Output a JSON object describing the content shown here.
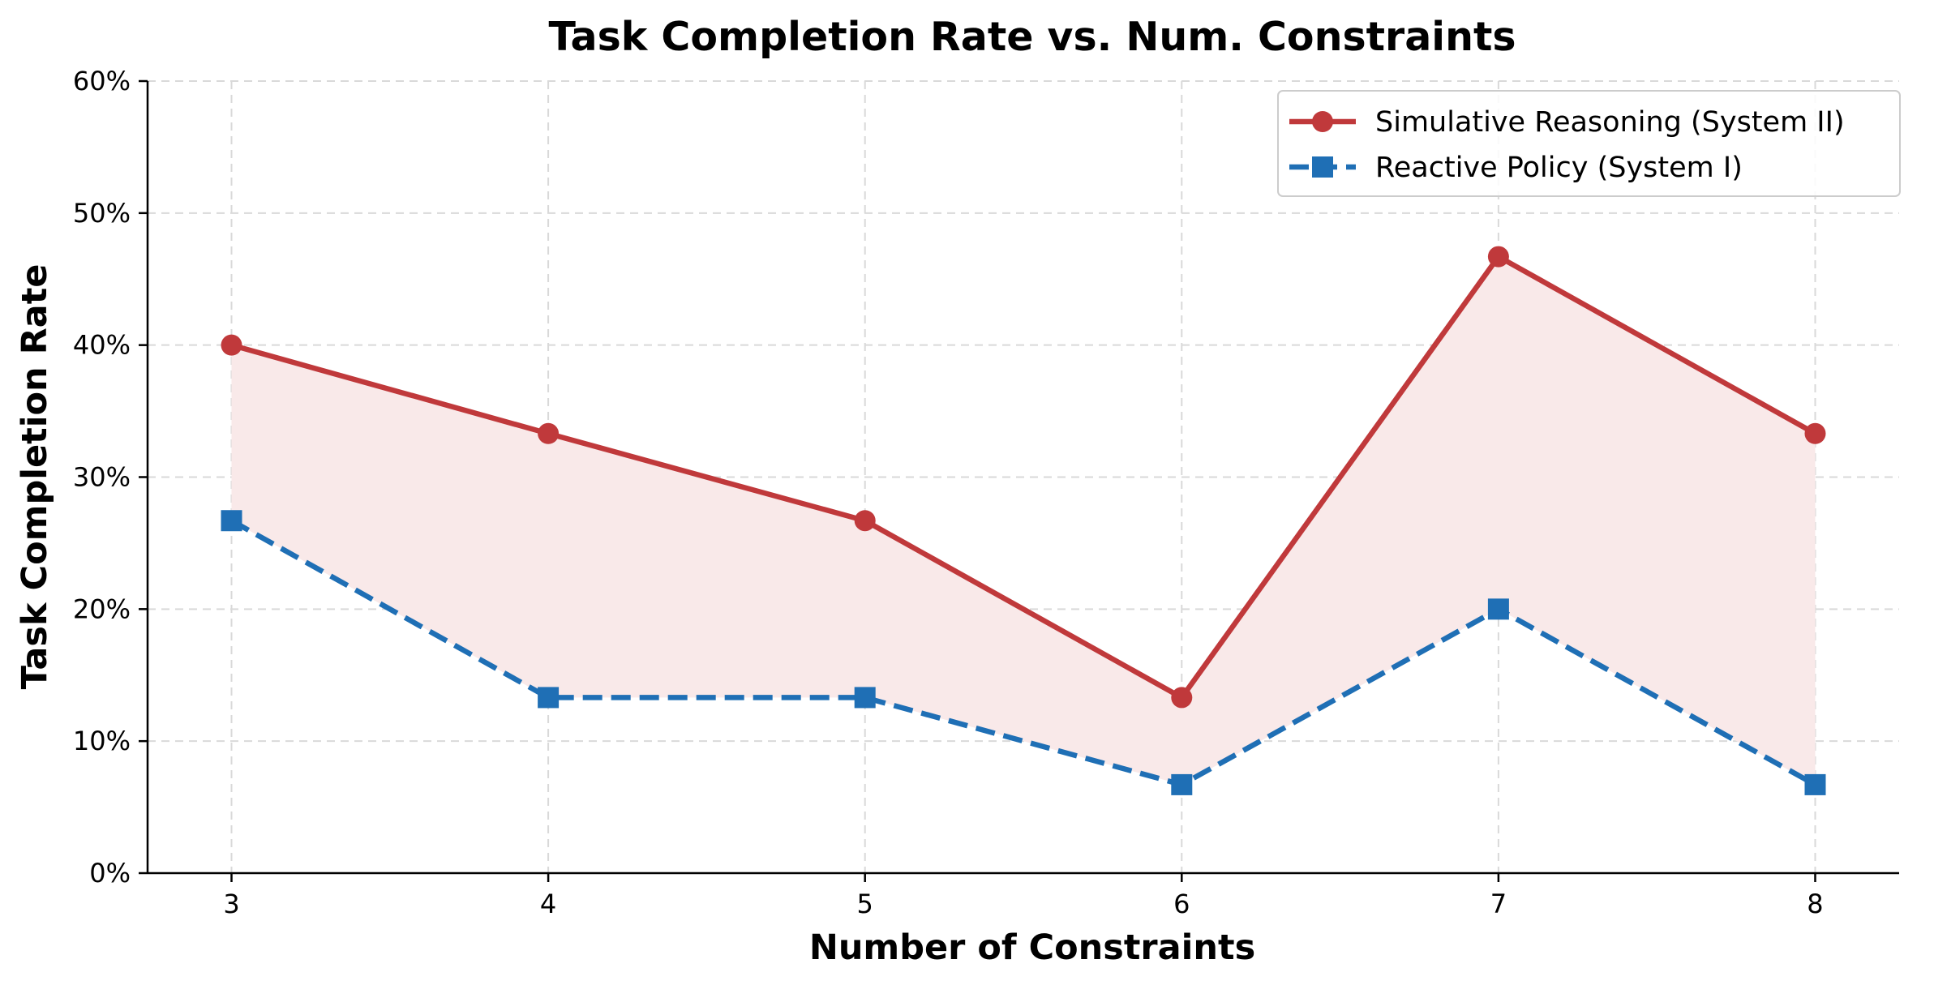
{
  "chart_data": {
    "type": "line",
    "title": "Task Completion Rate vs. Num. Constraints",
    "xlabel": "Number of Constraints",
    "ylabel": "Task Completion Rate",
    "x": [
      3,
      4,
      5,
      6,
      7,
      8
    ],
    "x_tick_labels": [
      "3",
      "4",
      "5",
      "6",
      "7",
      "8"
    ],
    "ylim": [
      0,
      0.6
    ],
    "y_ticks": [
      0,
      0.1,
      0.2,
      0.3,
      0.4,
      0.5,
      0.6
    ],
    "y_tick_labels": [
      "0%",
      "10%",
      "20%",
      "30%",
      "40%",
      "50%",
      "60%"
    ],
    "grid": true,
    "legend_position": "top-right",
    "fill_between_series": true,
    "series": [
      {
        "name": "Simulative Reasoning (System II)",
        "values": [
          0.4,
          0.333,
          0.267,
          0.133,
          0.467,
          0.333
        ],
        "color": "#c0393b",
        "marker": "circle",
        "line_style": "solid"
      },
      {
        "name": "Reactive Policy (System I)",
        "values": [
          0.267,
          0.133,
          0.133,
          0.067,
          0.2,
          0.067
        ],
        "color": "#1f6fb5",
        "marker": "square",
        "line_style": "dashed"
      }
    ],
    "fill_color": "#f9e9e9"
  }
}
